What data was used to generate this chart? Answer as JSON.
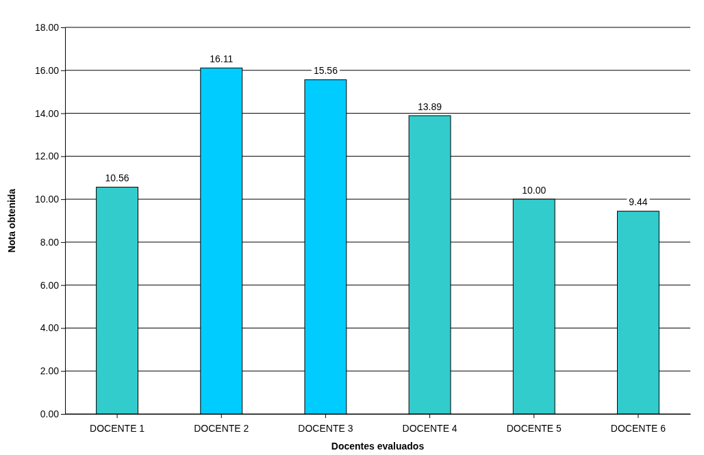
{
  "chart_data": {
    "type": "bar",
    "xlabel": "Docentes evaluados",
    "ylabel": "Nota obtenida",
    "categories": [
      "DOCENTE 1",
      "DOCENTE 2",
      "DOCENTE 3",
      "DOCENTE 4",
      "DOCENTE 5",
      "DOCENTE 6"
    ],
    "values": [
      10.56,
      16.11,
      15.56,
      13.89,
      10.0,
      9.44
    ],
    "colors": [
      "#33cccc",
      "#00ccff",
      "#00ccff",
      "#33cccc",
      "#33cccc",
      "#33cccc"
    ],
    "ylim": [
      0,
      18
    ],
    "yticks": [
      {
        "value": 0,
        "label": "0.00"
      },
      {
        "value": 2,
        "label": "2.00"
      },
      {
        "value": 4,
        "label": "4.00"
      },
      {
        "value": 6,
        "label": "6.00"
      },
      {
        "value": 8,
        "label": "8.00"
      },
      {
        "value": 10,
        "label": "10.00"
      },
      {
        "value": 12,
        "label": "12.00"
      },
      {
        "value": 14,
        "label": "14.00"
      },
      {
        "value": 16,
        "label": "16.00"
      },
      {
        "value": 18,
        "label": "18.00"
      }
    ],
    "value_labels": [
      "10.56",
      "16.11",
      "15.56",
      "13.89",
      "10.00",
      "9.44"
    ],
    "grid": "y"
  }
}
